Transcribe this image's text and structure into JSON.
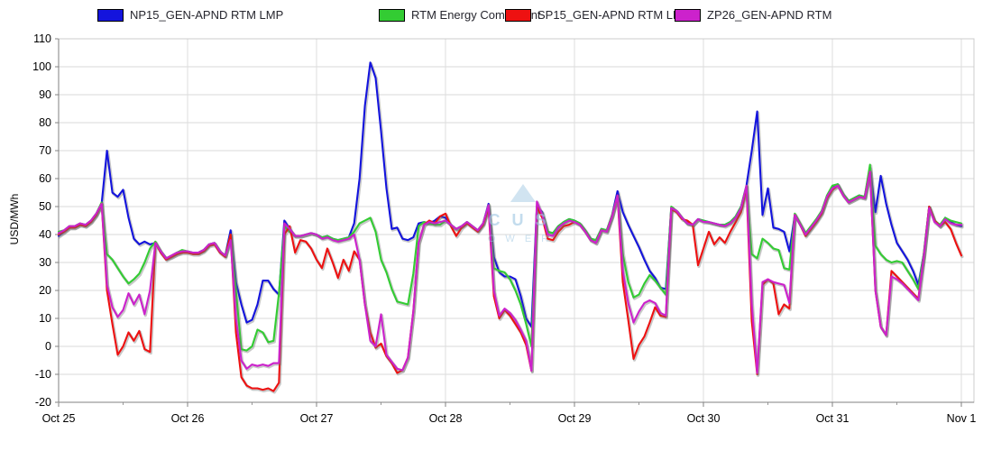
{
  "watermark": {
    "line1": "CUS",
    "line2": "OWER"
  },
  "chart_data": {
    "type": "line",
    "title": "",
    "ylabel": "USD/MWh",
    "ylim": [
      -20,
      110
    ],
    "y_ticks": [
      110,
      100,
      90,
      80,
      70,
      60,
      50,
      40,
      30,
      20,
      10,
      0,
      -10,
      -20
    ],
    "x_tick_labels": [
      "Oct 25",
      "Oct 26",
      "Oct 27",
      "Oct 28",
      "Oct 29",
      "Oct 30",
      "Oct 31",
      "Nov 1"
    ],
    "x_resolution": "hourly",
    "hours_span": 168,
    "grid": true,
    "legend_position": "top",
    "series": [
      {
        "name": "NP15_GEN-APND RTM LMP",
        "color": "#1414dd",
        "values": [
          39.5,
          41,
          42.5,
          42.5,
          43.5,
          43,
          44.5,
          47,
          51,
          70,
          55,
          53.5,
          56,
          46,
          38.5,
          36.5,
          37.5,
          36.5,
          37,
          34,
          31.5,
          32,
          33,
          34,
          34,
          33.5,
          33.5,
          34.5,
          36.5,
          37,
          34,
          32.5,
          41.5,
          23,
          15,
          8.5,
          9.5,
          15,
          23.5,
          23.5,
          20.5,
          18.5,
          45,
          42,
          39.5,
          39.5,
          40,
          40.5,
          40,
          39,
          39.5,
          38.5,
          38,
          38.5,
          39,
          44,
          60,
          86,
          101.5,
          96,
          77,
          56.5,
          42,
          42.5,
          38.5,
          38,
          39,
          44,
          44.5,
          44,
          45,
          46.5,
          46,
          43.5,
          42,
          43,
          44.5,
          43,
          41.5,
          44,
          51,
          32,
          26.5,
          25,
          25,
          24,
          18,
          10,
          7,
          50,
          48,
          41,
          40.5,
          43,
          44.5,
          45.5,
          45,
          44,
          41.5,
          38.5,
          38,
          42,
          41.5,
          47,
          55.5,
          48,
          43.5,
          39.5,
          35.5,
          31,
          27,
          24.5,
          21,
          20.5,
          49.5,
          48.5,
          46,
          44,
          43.5,
          45.5,
          45,
          44.5,
          44,
          43.5,
          43.5,
          44.5,
          46.5,
          50,
          57.5,
          70,
          84,
          47,
          56.5,
          42.5,
          42,
          41,
          34,
          47,
          43.5,
          40,
          42.5,
          45,
          48,
          53.5,
          57,
          58,
          54.5,
          52,
          53,
          54,
          53.5,
          64,
          48,
          61,
          51,
          43.5,
          37,
          34,
          31,
          27,
          22,
          33,
          50,
          45,
          43,
          46,
          44.5,
          43.5,
          43
        ]
      },
      {
        "name": "RTM Energy Component",
        "color": "#33cc33",
        "values": [
          41,
          41.5,
          43,
          43,
          44,
          43.5,
          45,
          47.5,
          51.5,
          33,
          31,
          28,
          25,
          22.5,
          24,
          26,
          30,
          35,
          37.5,
          34,
          31.5,
          32.5,
          33.5,
          34.5,
          34,
          33.5,
          33.5,
          34.5,
          36.5,
          37,
          34,
          32.5,
          40,
          20,
          -1,
          -1.5,
          0,
          6,
          5,
          1.5,
          2,
          19,
          43,
          41,
          39.5,
          39.5,
          40,
          40.5,
          40,
          39,
          39.5,
          38.5,
          38,
          38.5,
          39,
          41,
          44,
          45,
          46,
          41,
          31,
          26.5,
          20.5,
          16,
          15.5,
          15,
          26,
          43,
          44.5,
          44,
          43.5,
          43.5,
          45,
          43.5,
          42,
          43,
          44.5,
          43,
          41.5,
          44,
          50.5,
          28,
          27,
          26.5,
          24,
          20,
          15,
          8,
          0,
          50,
          47.5,
          41,
          40.5,
          43,
          44.5,
          45.5,
          45,
          44,
          41.5,
          38.5,
          38,
          42,
          41.5,
          47,
          54,
          33,
          23,
          17.5,
          18.5,
          22.5,
          25.5,
          23.5,
          21,
          18.5,
          50,
          48.5,
          46,
          44,
          43.5,
          45.5,
          45,
          44.5,
          44,
          43.5,
          43.5,
          44.5,
          46.5,
          50,
          57.5,
          33,
          31.5,
          38.5,
          37,
          35,
          34.5,
          28,
          27.5,
          47.5,
          44,
          40.5,
          43,
          45.5,
          48.5,
          54,
          57.5,
          58,
          54.5,
          52,
          53,
          54,
          53.5,
          65,
          36,
          33,
          31,
          30,
          30.5,
          30,
          27,
          24,
          20.5,
          33,
          50,
          45,
          43.5,
          46,
          45,
          44.5,
          44
        ]
      },
      {
        "name": "SP15_GEN-APND RTM LMP",
        "color": "#ee1111",
        "values": [
          40,
          41,
          42.5,
          42.5,
          43.5,
          43,
          44.5,
          47,
          51,
          20,
          8,
          -3,
          0,
          5,
          2,
          5.5,
          -1,
          -2,
          37,
          33.5,
          31,
          32,
          33,
          33.5,
          33.5,
          33,
          33,
          34,
          36,
          36.5,
          33.5,
          32,
          40,
          5,
          -11,
          -14,
          -15,
          -15,
          -15.5,
          -15,
          -16,
          -13,
          40,
          43,
          33.5,
          38,
          37.5,
          35,
          31,
          28,
          35,
          30,
          24.5,
          31,
          27,
          34,
          31,
          15,
          5,
          -0.5,
          1,
          -3.5,
          -6,
          -9.5,
          -8.5,
          -4,
          12.5,
          37,
          43.5,
          45,
          44,
          46.5,
          47.5,
          43,
          39.5,
          42.5,
          44,
          42.5,
          41,
          43.5,
          49.5,
          18,
          10,
          13,
          11,
          8,
          5,
          0.5,
          -8.7,
          50,
          46,
          38.5,
          38,
          41,
          43,
          43.5,
          44.5,
          43.5,
          41,
          38,
          37,
          41.5,
          41,
          46.5,
          54,
          23,
          9.5,
          -4.5,
          0.5,
          3.5,
          8.5,
          14,
          11,
          10.5,
          49,
          48,
          45.5,
          45,
          43.5,
          29,
          35,
          41,
          36.5,
          39,
          37,
          41,
          44.5,
          48,
          57,
          9,
          -10,
          22,
          24,
          22.5,
          11.5,
          15,
          13.5,
          47,
          43.5,
          39.5,
          42,
          44.5,
          47.5,
          53,
          56,
          57.5,
          54,
          51.5,
          52.5,
          53.5,
          53,
          62.5,
          20,
          7,
          4,
          27,
          25,
          23,
          21,
          19,
          17,
          32,
          50,
          45,
          43,
          44.5,
          42,
          37,
          32.5
        ]
      },
      {
        "name": "ZP26_GEN-APND RTM",
        "color": "#cc22cc",
        "values": [
          40.5,
          41.5,
          43,
          43,
          44,
          43.5,
          45,
          47.5,
          51,
          22,
          14,
          10.5,
          13,
          19,
          15,
          18.5,
          11.5,
          20,
          37,
          34,
          31.5,
          32.5,
          33.5,
          34,
          34,
          33.5,
          33.5,
          34.5,
          36.5,
          37,
          34,
          32.5,
          38,
          10,
          -5,
          -8,
          -6.5,
          -7,
          -6.5,
          -7,
          -6,
          -6,
          44,
          42,
          39.5,
          39.5,
          40,
          40.5,
          40,
          38.5,
          39,
          38,
          37.5,
          38,
          38.5,
          40,
          31,
          15,
          2,
          0,
          11.5,
          -3,
          -5.5,
          -8,
          -8.5,
          -4,
          12.5,
          37,
          43.5,
          44.5,
          44,
          44.5,
          45,
          43.5,
          42,
          43,
          44.5,
          43,
          41.5,
          44,
          50.5,
          20,
          11,
          13.5,
          12,
          9.5,
          6,
          2,
          -8.7,
          51.8,
          47,
          40,
          39.5,
          42.5,
          44,
          45,
          44.5,
          43.5,
          41,
          38,
          37,
          41.5,
          41,
          46.5,
          54,
          27,
          15.5,
          8.5,
          12.5,
          15.5,
          16.5,
          15.5,
          12,
          11,
          49.5,
          48.5,
          46,
          44,
          43.5,
          45.5,
          44.5,
          44.5,
          44,
          43.5,
          43,
          44,
          46,
          49.5,
          57.5,
          15,
          -9.5,
          23,
          24,
          23,
          22.5,
          22,
          15.5,
          47,
          43.5,
          40,
          42.5,
          45,
          48,
          53.5,
          56.5,
          57.5,
          54,
          51.5,
          52.5,
          53.5,
          53,
          62.5,
          20,
          7,
          4,
          25,
          24,
          22.5,
          20.5,
          18.5,
          16.5,
          32,
          49.5,
          44.5,
          43,
          45.5,
          44,
          43.5,
          43.5
        ]
      }
    ]
  }
}
